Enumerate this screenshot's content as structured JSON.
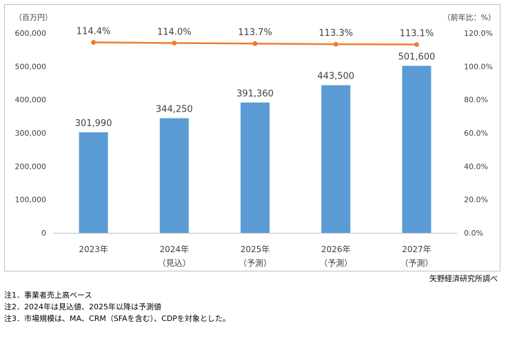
{
  "chart_data": {
    "type": "bar",
    "categories": [
      "2023年",
      "2024年",
      "2025年",
      "2026年",
      "2027年"
    ],
    "category_sublabels": [
      "",
      "（見込）",
      "（予測）",
      "（予測）",
      "（予測）"
    ],
    "series": [
      {
        "values": [
          301990,
          344250,
          391360,
          443500,
          501600
        ],
        "value_labels": [
          "301,990",
          "344,250",
          "391,360",
          "443,500",
          "501,600"
        ],
        "color": "#5b9bd5",
        "axis": "left",
        "kind": "bar"
      },
      {
        "values": [
          114.4,
          114.0,
          113.7,
          113.3,
          113.1
        ],
        "value_labels": [
          "114.4%",
          "114.0%",
          "113.7%",
          "113.3%",
          "113.1%"
        ],
        "color": "#ed7d31",
        "axis": "right",
        "kind": "line"
      }
    ],
    "y_left_unit": "（百万円）",
    "y_right_unit": "（前年比：%）",
    "y_left_ticks": [
      "0",
      "100,000",
      "200,000",
      "300,000",
      "400,000",
      "500,000",
      "600,000"
    ],
    "y_right_ticks": [
      "0.0%",
      "20.0%",
      "40.0%",
      "60.0%",
      "80.0%",
      "100.0%",
      "120.0%"
    ],
    "ylim_left": [
      0,
      600000
    ],
    "ylim_right": [
      0,
      120
    ],
    "grid": false
  },
  "source": "矢野経済研究所調べ",
  "notes": [
    "注1．事業者売上高ベース",
    "注2．2024年は見込値、2025年以降は予測値",
    "注3．市場規模は、MA、CRM（SFAを含む）、CDPを対象とした。"
  ]
}
